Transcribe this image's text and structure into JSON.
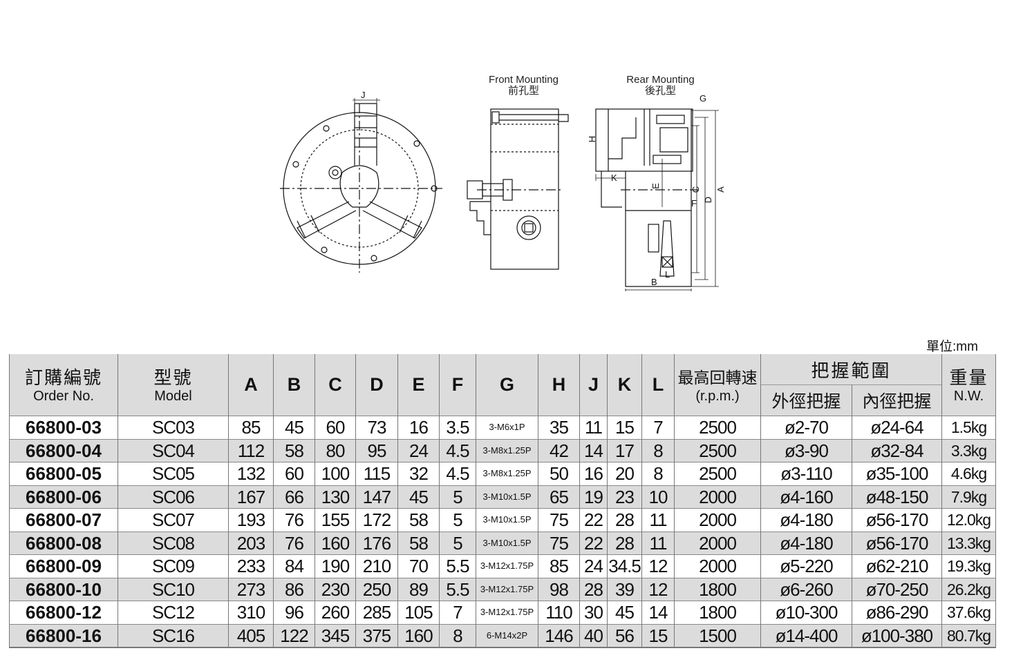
{
  "diagram": {
    "front_title_en": "Front Mounting",
    "front_title_zh": "前孔型",
    "rear_title_en": "Rear Mounting",
    "rear_title_zh": "後孔型",
    "dim_labels": {
      "J": "J",
      "G": "G",
      "H": "H",
      "K": "K",
      "E": "E",
      "F": "F",
      "C": "C",
      "D": "D",
      "A": "A",
      "B": "B",
      "L": "L"
    }
  },
  "unit": "單位:mm",
  "table": {
    "headers": {
      "order_zh": "訂購編號",
      "order_en": "Order No.",
      "model_zh": "型號",
      "model_en": "Model",
      "dims": [
        "A",
        "B",
        "C",
        "D",
        "E",
        "F",
        "G",
        "H",
        "J",
        "K",
        "L"
      ],
      "rpm_zh": "最高回轉速",
      "rpm_en": "(r.p.m.)",
      "grip_zh": "把握範圍",
      "grip_outer": "外徑把握",
      "grip_inner": "內徑把握",
      "weight_zh": "重量",
      "weight_en": "N.W."
    },
    "rows": [
      [
        "66800-03",
        "SC03",
        "85",
        "45",
        "60",
        "73",
        "16",
        "3.5",
        "3-M6x1P",
        "35",
        "11",
        "15",
        "7",
        "2500",
        "ø2-70",
        "ø24-64",
        "1.5kg"
      ],
      [
        "66800-04",
        "SC04",
        "112",
        "58",
        "80",
        "95",
        "24",
        "4.5",
        "3-M8x1.25P",
        "42",
        "14",
        "17",
        "8",
        "2500",
        "ø3-90",
        "ø32-84",
        "3.3kg"
      ],
      [
        "66800-05",
        "SC05",
        "132",
        "60",
        "100",
        "115",
        "32",
        "4.5",
        "3-M8x1.25P",
        "50",
        "16",
        "20",
        "8",
        "2500",
        "ø3-110",
        "ø35-100",
        "4.6kg"
      ],
      [
        "66800-06",
        "SC06",
        "167",
        "66",
        "130",
        "147",
        "45",
        "5",
        "3-M10x1.5P",
        "65",
        "19",
        "23",
        "10",
        "2000",
        "ø4-160",
        "ø48-150",
        "7.9kg"
      ],
      [
        "66800-07",
        "SC07",
        "193",
        "76",
        "155",
        "172",
        "58",
        "5",
        "3-M10x1.5P",
        "75",
        "22",
        "28",
        "11",
        "2000",
        "ø4-180",
        "ø56-170",
        "12.0kg"
      ],
      [
        "66800-08",
        "SC08",
        "203",
        "76",
        "160",
        "176",
        "58",
        "5",
        "3-M10x1.5P",
        "75",
        "22",
        "28",
        "11",
        "2000",
        "ø4-180",
        "ø56-170",
        "13.3kg"
      ],
      [
        "66800-09",
        "SC09",
        "233",
        "84",
        "190",
        "210",
        "70",
        "5.5",
        "3-M12x1.75P",
        "85",
        "24",
        "34.5",
        "12",
        "2000",
        "ø5-220",
        "ø62-210",
        "19.3kg"
      ],
      [
        "66800-10",
        "SC10",
        "273",
        "86",
        "230",
        "250",
        "89",
        "5.5",
        "3-M12x1.75P",
        "98",
        "28",
        "39",
        "12",
        "1800",
        "ø6-260",
        "ø70-250",
        "26.2kg"
      ],
      [
        "66800-12",
        "SC12",
        "310",
        "96",
        "260",
        "285",
        "105",
        "7",
        "3-M12x1.75P",
        "110",
        "30",
        "45",
        "14",
        "1800",
        "ø10-300",
        "ø86-290",
        "37.6kg"
      ],
      [
        "66800-16",
        "SC16",
        "405",
        "122",
        "345",
        "375",
        "160",
        "8",
        "6-M14x2P",
        "146",
        "40",
        "56",
        "15",
        "1500",
        "ø14-400",
        "ø100-380",
        "80.7kg"
      ]
    ]
  }
}
